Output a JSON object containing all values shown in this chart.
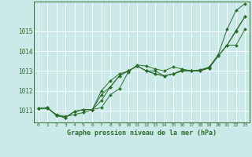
{
  "xlabel": "Graphe pression niveau de la mer (hPa)",
  "background_color": "#cce9e9",
  "grid_color": "#ffffff",
  "line_color": "#2d6e2d",
  "ylim": [
    1010.4,
    1016.5
  ],
  "xlim": [
    -0.5,
    23.5
  ],
  "yticks": [
    1011,
    1012,
    1013,
    1014,
    1015
  ],
  "xticks": [
    0,
    1,
    2,
    3,
    4,
    5,
    6,
    7,
    8,
    9,
    10,
    11,
    12,
    13,
    14,
    15,
    16,
    17,
    18,
    19,
    20,
    21,
    22,
    23
  ],
  "series": [
    [
      1011.1,
      1011.1,
      1010.8,
      1010.7,
      1010.8,
      1010.9,
      1011.05,
      1011.15,
      1011.8,
      1012.1,
      1012.95,
      1013.3,
      1013.25,
      1013.1,
      1013.0,
      1013.2,
      1013.1,
      1013.0,
      1013.05,
      1013.2,
      1013.8,
      1015.1,
      1016.05,
      1016.4
    ],
    [
      1011.1,
      1011.15,
      1010.75,
      1010.65,
      1010.95,
      1011.05,
      1011.05,
      1011.5,
      1012.2,
      1012.75,
      1013.0,
      1013.25,
      1013.0,
      1012.85,
      1012.75,
      1012.85,
      1013.05,
      1013.0,
      1013.05,
      1013.15,
      1013.75,
      1014.3,
      1015.05,
      1015.75
    ],
    [
      1011.1,
      1011.15,
      1010.75,
      1010.65,
      1010.95,
      1011.05,
      1011.05,
      1012.0,
      1012.5,
      1012.85,
      1013.0,
      1013.25,
      1013.0,
      1012.85,
      1012.75,
      1012.85,
      1013.0,
      1013.0,
      1013.0,
      1013.15,
      1013.75,
      1014.3,
      1014.3,
      1015.1
    ],
    [
      1011.1,
      1011.15,
      1010.75,
      1010.65,
      1010.95,
      1011.05,
      1011.05,
      1011.8,
      1012.2,
      1012.75,
      1013.0,
      1013.25,
      1013.0,
      1013.0,
      1012.75,
      1012.85,
      1013.0,
      1013.0,
      1013.0,
      1013.15,
      1013.75,
      1014.3,
      1015.0,
      1015.75
    ]
  ]
}
